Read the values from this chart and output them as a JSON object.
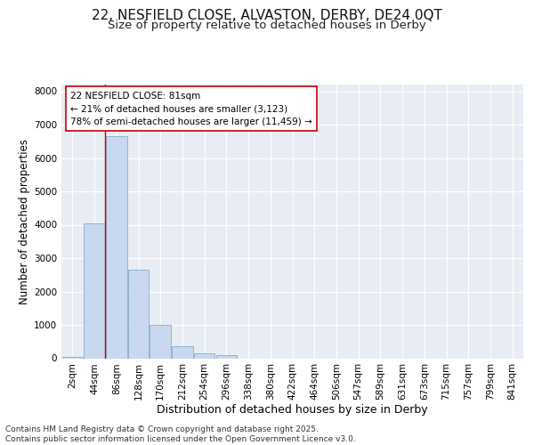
{
  "title1": "22, NESFIELD CLOSE, ALVASTON, DERBY, DE24 0QT",
  "title2": "Size of property relative to detached houses in Derby",
  "xlabel": "Distribution of detached houses by size in Derby",
  "ylabel": "Number of detached properties",
  "categories": [
    "2sqm",
    "44sqm",
    "86sqm",
    "128sqm",
    "170sqm",
    "212sqm",
    "254sqm",
    "296sqm",
    "338sqm",
    "380sqm",
    "422sqm",
    "464sqm",
    "506sqm",
    "547sqm",
    "589sqm",
    "631sqm",
    "673sqm",
    "715sqm",
    "757sqm",
    "799sqm",
    "841sqm"
  ],
  "values": [
    50,
    4050,
    6650,
    2650,
    1000,
    350,
    150,
    100,
    0,
    0,
    0,
    0,
    0,
    0,
    0,
    0,
    0,
    0,
    0,
    0,
    0
  ],
  "bar_color": "#c8d8ee",
  "bar_edge_color": "#7aa0c4",
  "vline_color": "#cc0000",
  "vline_x_index": 2,
  "ylim": [
    0,
    8200
  ],
  "yticks": [
    0,
    1000,
    2000,
    3000,
    4000,
    5000,
    6000,
    7000,
    8000
  ],
  "annotation_line1": "22 NESFIELD CLOSE: 81sqm",
  "annotation_line2": "← 21% of detached houses are smaller (3,123)",
  "annotation_line3": "78% of semi-detached houses are larger (11,459) →",
  "plot_bg_color": "#e8ecf4",
  "fig_bg_color": "#ffffff",
  "footnote": "Contains HM Land Registry data © Crown copyright and database right 2025.\nContains public sector information licensed under the Open Government Licence v3.0.",
  "title1_fontsize": 11,
  "title2_fontsize": 9.5,
  "xlabel_fontsize": 9,
  "ylabel_fontsize": 8.5,
  "tick_fontsize": 7.5,
  "annotation_fontsize": 7.5,
  "footnote_fontsize": 6.5
}
